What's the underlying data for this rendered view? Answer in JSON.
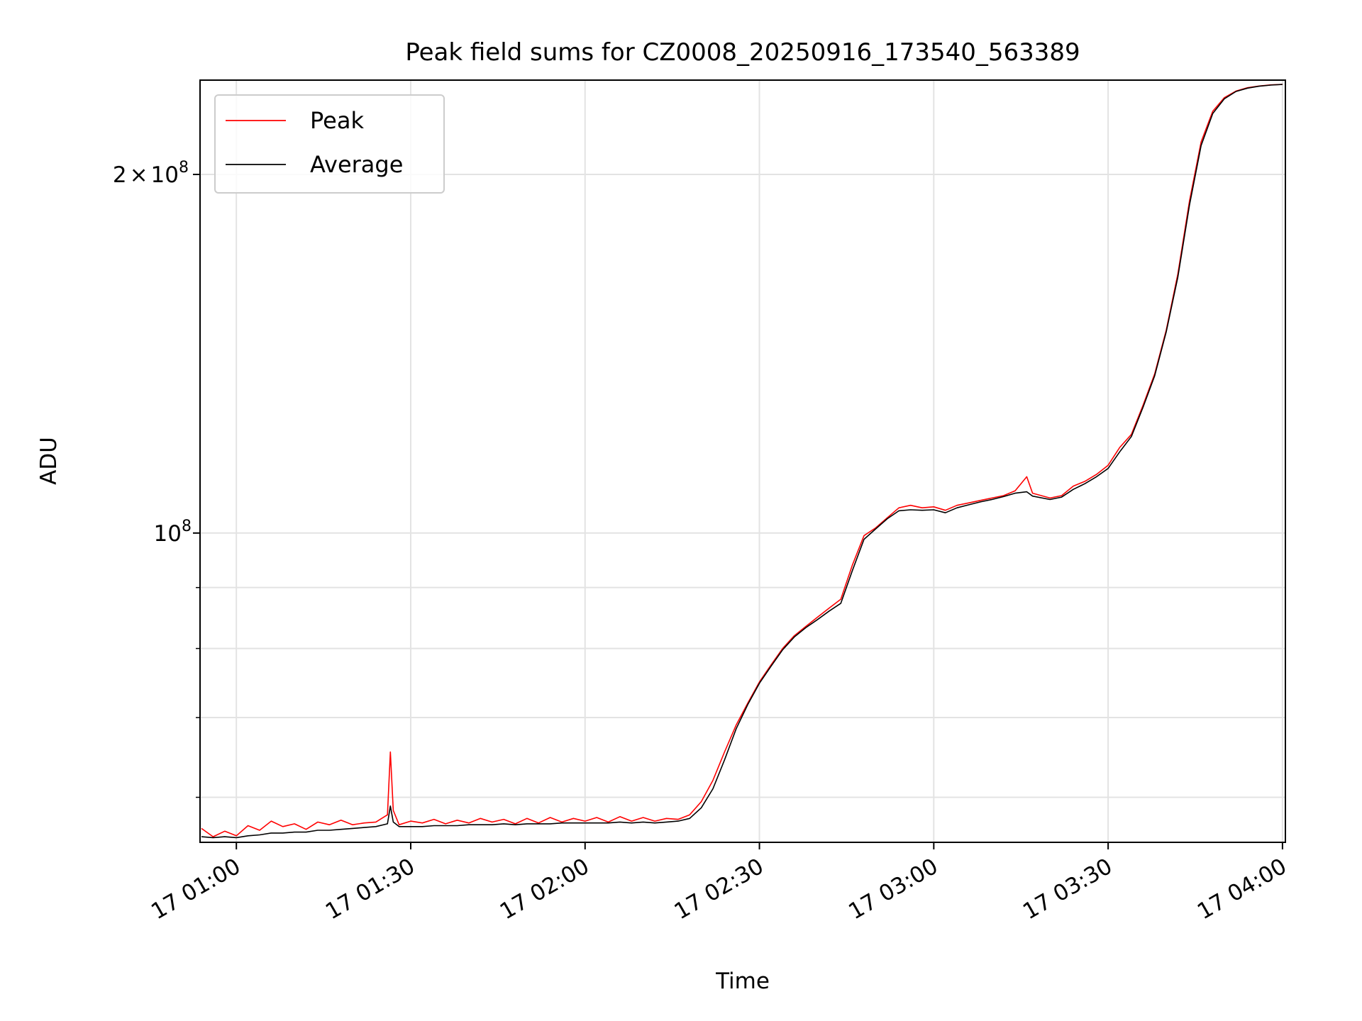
{
  "chart_data": {
    "type": "line",
    "title": "Peak field sums for CZ0008_20250916_173540_563389",
    "xlabel": "Time",
    "ylabel": "ADU",
    "yscale": "log",
    "grid": true,
    "legend_position": "upper-left",
    "xlim": [
      "00:53:45",
      "04:00:30"
    ],
    "ylim": [
      55000000,
      240000000
    ],
    "x_ticks": [
      {
        "t": "01:00:00",
        "label": "17 01:00"
      },
      {
        "t": "01:30:00",
        "label": "17 01:30"
      },
      {
        "t": "02:00:00",
        "label": "17 02:00"
      },
      {
        "t": "02:30:00",
        "label": "17 02:30"
      },
      {
        "t": "03:00:00",
        "label": "17 03:00"
      },
      {
        "t": "03:30:00",
        "label": "17 03:30"
      },
      {
        "t": "04:00:00",
        "label": "17 04:00"
      }
    ],
    "y_major_ticks": [
      {
        "value": 100000000,
        "base": "10",
        "exp": "8"
      },
      {
        "value": 200000000,
        "mant": "2",
        "times": "×",
        "base": "10",
        "exp": "8"
      }
    ],
    "y_minor_ticks": [
      60000000,
      70000000,
      80000000,
      90000000
    ],
    "series": [
      {
        "name": "Peak",
        "color": "#ff0000",
        "points": [
          [
            "00:54:00",
            56500000
          ],
          [
            "00:56:00",
            55600000
          ],
          [
            "00:58:00",
            56200000
          ],
          [
            "01:00:00",
            55700000
          ],
          [
            "01:02:00",
            56800000
          ],
          [
            "01:04:00",
            56300000
          ],
          [
            "01:06:00",
            57300000
          ],
          [
            "01:08:00",
            56700000
          ],
          [
            "01:10:00",
            57000000
          ],
          [
            "01:12:00",
            56400000
          ],
          [
            "01:14:00",
            57200000
          ],
          [
            "01:16:00",
            56900000
          ],
          [
            "01:18:00",
            57400000
          ],
          [
            "01:20:00",
            56900000
          ],
          [
            "01:22:00",
            57100000
          ],
          [
            "01:24:00",
            57200000
          ],
          [
            "01:26:00",
            58000000
          ],
          [
            "01:26:30",
            65500000
          ],
          [
            "01:27:00",
            58500000
          ],
          [
            "01:28:00",
            56900000
          ],
          [
            "01:30:00",
            57300000
          ],
          [
            "01:32:00",
            57100000
          ],
          [
            "01:34:00",
            57500000
          ],
          [
            "01:36:00",
            57000000
          ],
          [
            "01:38:00",
            57400000
          ],
          [
            "01:40:00",
            57100000
          ],
          [
            "01:42:00",
            57600000
          ],
          [
            "01:44:00",
            57200000
          ],
          [
            "01:46:00",
            57500000
          ],
          [
            "01:48:00",
            57000000
          ],
          [
            "01:50:00",
            57600000
          ],
          [
            "01:52:00",
            57100000
          ],
          [
            "01:54:00",
            57700000
          ],
          [
            "01:56:00",
            57200000
          ],
          [
            "01:58:00",
            57600000
          ],
          [
            "02:00:00",
            57300000
          ],
          [
            "02:02:00",
            57700000
          ],
          [
            "02:04:00",
            57200000
          ],
          [
            "02:06:00",
            57800000
          ],
          [
            "02:08:00",
            57300000
          ],
          [
            "02:10:00",
            57700000
          ],
          [
            "02:12:00",
            57300000
          ],
          [
            "02:14:00",
            57600000
          ],
          [
            "02:16:00",
            57500000
          ],
          [
            "02:18:00",
            58000000
          ],
          [
            "02:20:00",
            59500000
          ],
          [
            "02:22:00",
            62000000
          ],
          [
            "02:24:00",
            65500000
          ],
          [
            "02:26:00",
            69000000
          ],
          [
            "02:28:00",
            72000000
          ],
          [
            "02:30:00",
            75000000
          ],
          [
            "02:32:00",
            77500000
          ],
          [
            "02:34:00",
            80000000
          ],
          [
            "02:36:00",
            82000000
          ],
          [
            "02:38:00",
            83500000
          ],
          [
            "02:40:00",
            85000000
          ],
          [
            "02:42:00",
            86500000
          ],
          [
            "02:44:00",
            88000000
          ],
          [
            "02:46:00",
            94000000
          ],
          [
            "02:48:00",
            99500000
          ],
          [
            "02:50:00",
            101000000
          ],
          [
            "02:52:00",
            103000000
          ],
          [
            "02:54:00",
            105000000
          ],
          [
            "02:56:00",
            105500000
          ],
          [
            "02:58:00",
            105000000
          ],
          [
            "03:00:00",
            105200000
          ],
          [
            "03:02:00",
            104500000
          ],
          [
            "03:04:00",
            105500000
          ],
          [
            "03:06:00",
            106000000
          ],
          [
            "03:08:00",
            106500000
          ],
          [
            "03:10:00",
            107000000
          ],
          [
            "03:12:00",
            107500000
          ],
          [
            "03:14:00",
            108500000
          ],
          [
            "03:16:00",
            111500000
          ],
          [
            "03:17:00",
            108000000
          ],
          [
            "03:20:00",
            107000000
          ],
          [
            "03:22:00",
            107500000
          ],
          [
            "03:24:00",
            109500000
          ],
          [
            "03:26:00",
            110500000
          ],
          [
            "03:28:00",
            112000000
          ],
          [
            "03:30:00",
            114000000
          ],
          [
            "03:32:00",
            118000000
          ],
          [
            "03:34:00",
            121000000
          ],
          [
            "03:36:00",
            128000000
          ],
          [
            "03:38:00",
            136000000
          ],
          [
            "03:40:00",
            148000000
          ],
          [
            "03:42:00",
            165000000
          ],
          [
            "03:44:00",
            190000000
          ],
          [
            "03:46:00",
            213000000
          ],
          [
            "03:48:00",
            226000000
          ],
          [
            "03:50:00",
            232000000
          ],
          [
            "03:52:00",
            235000000
          ],
          [
            "03:54:00",
            236500000
          ],
          [
            "03:56:00",
            237300000
          ],
          [
            "03:58:00",
            237800000
          ],
          [
            "04:00:00",
            238000000
          ]
        ]
      },
      {
        "name": "Average",
        "color": "#000000",
        "points": [
          [
            "00:54:00",
            55600000
          ],
          [
            "00:56:00",
            55500000
          ],
          [
            "00:58:00",
            55600000
          ],
          [
            "01:00:00",
            55500000
          ],
          [
            "01:02:00",
            55700000
          ],
          [
            "01:04:00",
            55800000
          ],
          [
            "01:06:00",
            56000000
          ],
          [
            "01:08:00",
            56000000
          ],
          [
            "01:10:00",
            56100000
          ],
          [
            "01:12:00",
            56100000
          ],
          [
            "01:14:00",
            56300000
          ],
          [
            "01:16:00",
            56300000
          ],
          [
            "01:18:00",
            56400000
          ],
          [
            "01:20:00",
            56500000
          ],
          [
            "01:22:00",
            56600000
          ],
          [
            "01:24:00",
            56700000
          ],
          [
            "01:26:00",
            57000000
          ],
          [
            "01:26:30",
            59000000
          ],
          [
            "01:27:00",
            57200000
          ],
          [
            "01:28:00",
            56700000
          ],
          [
            "01:30:00",
            56700000
          ],
          [
            "01:32:00",
            56700000
          ],
          [
            "01:34:00",
            56800000
          ],
          [
            "01:36:00",
            56800000
          ],
          [
            "01:38:00",
            56800000
          ],
          [
            "01:40:00",
            56900000
          ],
          [
            "01:42:00",
            56900000
          ],
          [
            "01:44:00",
            56900000
          ],
          [
            "01:46:00",
            57000000
          ],
          [
            "01:48:00",
            56900000
          ],
          [
            "01:50:00",
            57000000
          ],
          [
            "01:52:00",
            57000000
          ],
          [
            "01:54:00",
            57000000
          ],
          [
            "01:56:00",
            57100000
          ],
          [
            "01:58:00",
            57100000
          ],
          [
            "02:00:00",
            57100000
          ],
          [
            "02:02:00",
            57100000
          ],
          [
            "02:04:00",
            57100000
          ],
          [
            "02:06:00",
            57200000
          ],
          [
            "02:08:00",
            57100000
          ],
          [
            "02:10:00",
            57200000
          ],
          [
            "02:12:00",
            57100000
          ],
          [
            "02:14:00",
            57200000
          ],
          [
            "02:16:00",
            57300000
          ],
          [
            "02:18:00",
            57600000
          ],
          [
            "02:20:00",
            58800000
          ],
          [
            "02:22:00",
            61000000
          ],
          [
            "02:24:00",
            64500000
          ],
          [
            "02:26:00",
            68500000
          ],
          [
            "02:28:00",
            71800000
          ],
          [
            "02:30:00",
            74800000
          ],
          [
            "02:32:00",
            77300000
          ],
          [
            "02:34:00",
            79800000
          ],
          [
            "02:36:00",
            81800000
          ],
          [
            "02:38:00",
            83300000
          ],
          [
            "02:40:00",
            84600000
          ],
          [
            "02:42:00",
            86000000
          ],
          [
            "02:44:00",
            87300000
          ],
          [
            "02:46:00",
            93000000
          ],
          [
            "02:48:00",
            98800000
          ],
          [
            "02:50:00",
            100800000
          ],
          [
            "02:52:00",
            102800000
          ],
          [
            "02:54:00",
            104400000
          ],
          [
            "02:56:00",
            104600000
          ],
          [
            "02:58:00",
            104500000
          ],
          [
            "03:00:00",
            104600000
          ],
          [
            "03:02:00",
            104000000
          ],
          [
            "03:04:00",
            105000000
          ],
          [
            "03:06:00",
            105600000
          ],
          [
            "03:08:00",
            106200000
          ],
          [
            "03:10:00",
            106700000
          ],
          [
            "03:12:00",
            107300000
          ],
          [
            "03:14:00",
            108000000
          ],
          [
            "03:16:00",
            108300000
          ],
          [
            "03:17:00",
            107400000
          ],
          [
            "03:20:00",
            106700000
          ],
          [
            "03:22:00",
            107200000
          ],
          [
            "03:24:00",
            108800000
          ],
          [
            "03:26:00",
            110000000
          ],
          [
            "03:28:00",
            111500000
          ],
          [
            "03:30:00",
            113300000
          ],
          [
            "03:32:00",
            117000000
          ],
          [
            "03:34:00",
            120500000
          ],
          [
            "03:36:00",
            127500000
          ],
          [
            "03:38:00",
            135500000
          ],
          [
            "03:40:00",
            147500000
          ],
          [
            "03:42:00",
            164000000
          ],
          [
            "03:44:00",
            188500000
          ],
          [
            "03:46:00",
            211500000
          ],
          [
            "03:48:00",
            225000000
          ],
          [
            "03:50:00",
            231500000
          ],
          [
            "03:52:00",
            234800000
          ],
          [
            "03:54:00",
            236300000
          ],
          [
            "03:56:00",
            237200000
          ],
          [
            "03:58:00",
            237700000
          ],
          [
            "04:00:00",
            238000000
          ]
        ]
      }
    ]
  }
}
